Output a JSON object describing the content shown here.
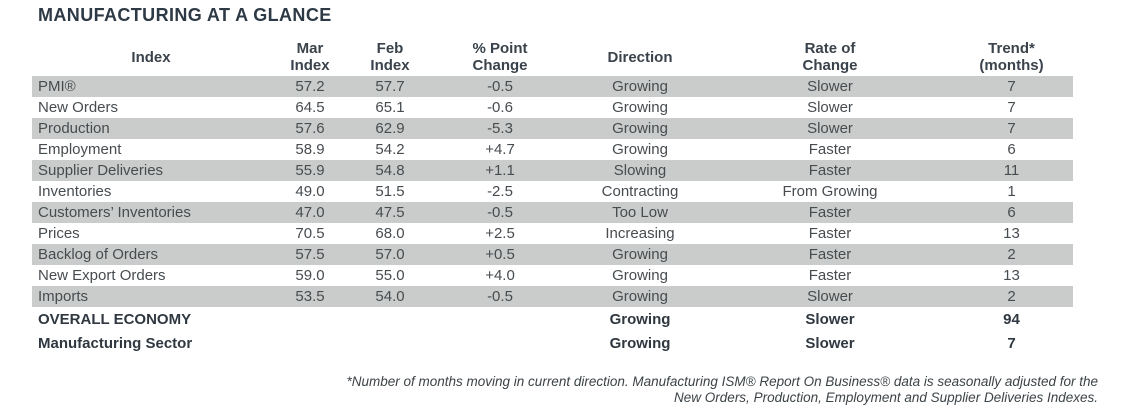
{
  "title": "MANUFACTURING AT A GLANCE",
  "table": {
    "columns": [
      {
        "id": "index",
        "line1": "Index",
        "line2": ""
      },
      {
        "id": "mar",
        "line1": "Mar",
        "line2": "Index"
      },
      {
        "id": "feb",
        "line1": "Feb",
        "line2": "Index"
      },
      {
        "id": "change",
        "line1": "% Point",
        "line2": "Change"
      },
      {
        "id": "direction",
        "line1": "Direction",
        "line2": ""
      },
      {
        "id": "rate",
        "line1": "Rate of",
        "line2": "Change"
      },
      {
        "id": "trend",
        "line1": "Trend*",
        "line2": "(months)"
      }
    ],
    "rows": [
      {
        "index": "PMI®",
        "mar": "57.2",
        "feb": "57.7",
        "change": "-0.5",
        "direction": "Growing",
        "rate": "Slower",
        "trend": "7",
        "shaded": true,
        "bold": false
      },
      {
        "index": "New Orders",
        "mar": "64.5",
        "feb": "65.1",
        "change": "-0.6",
        "direction": "Growing",
        "rate": "Slower",
        "trend": "7",
        "shaded": false,
        "bold": false
      },
      {
        "index": "Production",
        "mar": "57.6",
        "feb": "62.9",
        "change": "-5.3",
        "direction": "Growing",
        "rate": "Slower",
        "trend": "7",
        "shaded": true,
        "bold": false
      },
      {
        "index": "Employment",
        "mar": "58.9",
        "feb": "54.2",
        "change": "+4.7",
        "direction": "Growing",
        "rate": "Faster",
        "trend": "6",
        "shaded": false,
        "bold": false
      },
      {
        "index": "Supplier Deliveries",
        "mar": "55.9",
        "feb": "54.8",
        "change": "+1.1",
        "direction": "Slowing",
        "rate": "Faster",
        "trend": "11",
        "shaded": true,
        "bold": false
      },
      {
        "index": "Inventories",
        "mar": "49.0",
        "feb": "51.5",
        "change": "-2.5",
        "direction": "Contracting",
        "rate": "From Growing",
        "trend": "1",
        "shaded": false,
        "bold": false
      },
      {
        "index": "Customers’ Inventories",
        "mar": "47.0",
        "feb": "47.5",
        "change": "-0.5",
        "direction": "Too Low",
        "rate": "Faster",
        "trend": "6",
        "shaded": true,
        "bold": false
      },
      {
        "index": "Prices",
        "mar": "70.5",
        "feb": "68.0",
        "change": "+2.5",
        "direction": "Increasing",
        "rate": "Faster",
        "trend": "13",
        "shaded": false,
        "bold": false
      },
      {
        "index": "Backlog of Orders",
        "mar": "57.5",
        "feb": "57.0",
        "change": "+0.5",
        "direction": "Growing",
        "rate": "Faster",
        "trend": "2",
        "shaded": true,
        "bold": false
      },
      {
        "index": "New Export Orders",
        "mar": "59.0",
        "feb": "55.0",
        "change": "+4.0",
        "direction": "Growing",
        "rate": "Faster",
        "trend": "13",
        "shaded": false,
        "bold": false
      },
      {
        "index": "Imports",
        "mar": "53.5",
        "feb": "54.0",
        "change": "-0.5",
        "direction": "Growing",
        "rate": "Slower",
        "trend": "2",
        "shaded": true,
        "bold": false
      },
      {
        "index": "OVERALL ECONOMY",
        "mar": "",
        "feb": "",
        "change": "",
        "direction": "Growing",
        "rate": "Slower",
        "trend": "94",
        "shaded": false,
        "bold": true
      },
      {
        "index": "Manufacturing Sector",
        "mar": "",
        "feb": "",
        "change": "",
        "direction": "Growing",
        "rate": "Slower",
        "trend": "7",
        "shaded": false,
        "bold": true
      }
    ]
  },
  "footnote": {
    "line1": "*Number of months moving in current direction. Manufacturing ISM® Report On Business® data is seasonally adjusted for the",
    "line2": "New Orders, Production, Employment and Supplier Deliveries Indexes."
  },
  "colors": {
    "row_shade": "#cacccb",
    "title_text": "#2d3944",
    "body_text": "#474c50",
    "bold_text": "#2f3841"
  }
}
